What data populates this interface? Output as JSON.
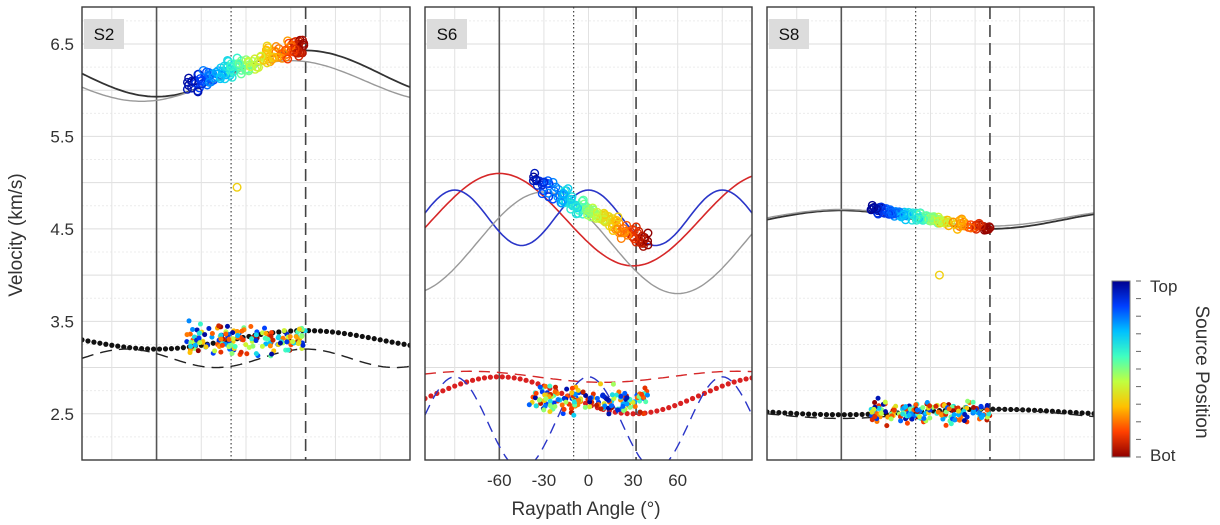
{
  "figure": {
    "ylabel": "Velocity (km/s)",
    "xlabel": "Raypath Angle (°)",
    "colorbar": {
      "label": "Source Position",
      "top_label": "Top",
      "bottom_label": "Bot",
      "colors": [
        "#00008f",
        "#0040ff",
        "#00c0ff",
        "#40ffc0",
        "#c0ff40",
        "#ffc000",
        "#ff4000",
        "#8f0000"
      ]
    },
    "colors": {
      "fast_model": "#333333",
      "slow_model": "#999999",
      "red_model": "#d62728",
      "blue_model": "#2a35c8",
      "black_points": "#111111",
      "red_points": "#d92020"
    }
  },
  "chart_data": [
    {
      "type": "scatter",
      "panel": "S2",
      "ylim": [
        2.0,
        6.9
      ],
      "xlim": [
        -110,
        110
      ],
      "yticks": [
        2.5,
        3.5,
        4.5,
        5.5,
        6.5
      ],
      "reference_lines": {
        "solid": -60,
        "dotted": -10,
        "dashed": 40
      },
      "qp_cloud": {
        "x_range": [
          -40,
          40
        ],
        "v_at_low_angle": 6.05,
        "v_at_high_angle": 6.5,
        "spread": 0.28
      },
      "qs_cloud": {
        "x_range": [
          -40,
          40
        ],
        "v_center": 3.3,
        "spread": 0.22
      },
      "outliers": [
        {
          "x": -6,
          "v": 4.95
        }
      ],
      "model_curves": [
        {
          "name": "",
          "style": "solid-dark",
          "phase": 40,
          "period": 200,
          "mean": 6.18,
          "amp": 0.25
        },
        {
          "name": "",
          "style": "solid-light",
          "phase": 30,
          "period": 200,
          "mean": 6.1,
          "amp": 0.22
        },
        {
          "name": "",
          "style": "dotted-black",
          "phase": 40,
          "period": 200,
          "mean": 3.3,
          "amp": 0.1
        },
        {
          "name": "",
          "style": "dashed-black",
          "phase": 40,
          "period": 120,
          "mean": 3.1,
          "amp": 0.1
        }
      ]
    },
    {
      "type": "scatter",
      "panel": "S6",
      "ylim": [
        2.0,
        6.9
      ],
      "xlim": [
        -110,
        110
      ],
      "xticks": [
        -60,
        -30,
        0,
        30,
        60
      ],
      "yticks": [
        2.5,
        3.5,
        4.5,
        5.5,
        6.5
      ],
      "reference_lines": {
        "solid": -60,
        "dotted": -10,
        "dashed": 32
      },
      "qp_cloud": {
        "x_range": [
          -40,
          40
        ],
        "v_at_low_angle": 5.05,
        "v_at_high_angle": 4.35,
        "spread": 0.25
      },
      "qs_cloud": {
        "x_range": [
          -40,
          40
        ],
        "v_center": 2.65,
        "spread": 0.2
      },
      "model_curves": [
        {
          "name": "",
          "style": "solid-red",
          "phase": -60,
          "period": 180,
          "mean": 4.6,
          "amp": 0.5
        },
        {
          "name": "",
          "style": "solid-blue",
          "phase": 90,
          "period": 90,
          "mean": 4.62,
          "amp": 0.3
        },
        {
          "name": "",
          "style": "solid-light",
          "phase": -30,
          "period": 180,
          "mean": 4.35,
          "amp": 0.55
        },
        {
          "name": "",
          "style": "dashed-red",
          "phase": 100,
          "period": 180,
          "mean": 2.9,
          "amp": 0.06
        },
        {
          "name": "",
          "style": "dotted-red",
          "phase": -60,
          "period": 180,
          "mean": 2.7,
          "amp": 0.2
        },
        {
          "name": "",
          "style": "dashed-blue",
          "phase": 0,
          "period": 90,
          "mean": 2.4,
          "amp": 0.5
        }
      ]
    },
    {
      "type": "scatter",
      "panel": "S8",
      "ylim": [
        2.0,
        6.9
      ],
      "xlim": [
        -110,
        110
      ],
      "yticks": [
        2.5,
        3.5,
        4.5,
        5.5,
        6.5
      ],
      "reference_lines": {
        "solid": -60,
        "dotted": -10,
        "dashed": 40
      },
      "qp_cloud": {
        "x_range": [
          -40,
          40
        ],
        "v_at_low_angle": 4.72,
        "v_at_high_angle": 4.5,
        "spread": 0.12
      },
      "qs_cloud": {
        "x_range": [
          -40,
          40
        ],
        "v_center": 2.52,
        "spread": 0.18
      },
      "outliers": [
        {
          "x": 6,
          "v": 4.0
        }
      ],
      "model_curves": [
        {
          "name": "",
          "style": "solid-dark",
          "phase": -60,
          "period": 200,
          "mean": 4.6,
          "amp": 0.1
        },
        {
          "name": "",
          "style": "solid-light",
          "phase": -60,
          "period": 200,
          "mean": 4.62,
          "amp": 0.09
        },
        {
          "name": "",
          "style": "dotted-black",
          "phase": 40,
          "period": 200,
          "mean": 2.52,
          "amp": 0.03
        },
        {
          "name": "",
          "style": "dashed-black",
          "phase": 40,
          "period": 200,
          "mean": 2.5,
          "amp": 0.05
        }
      ]
    }
  ]
}
